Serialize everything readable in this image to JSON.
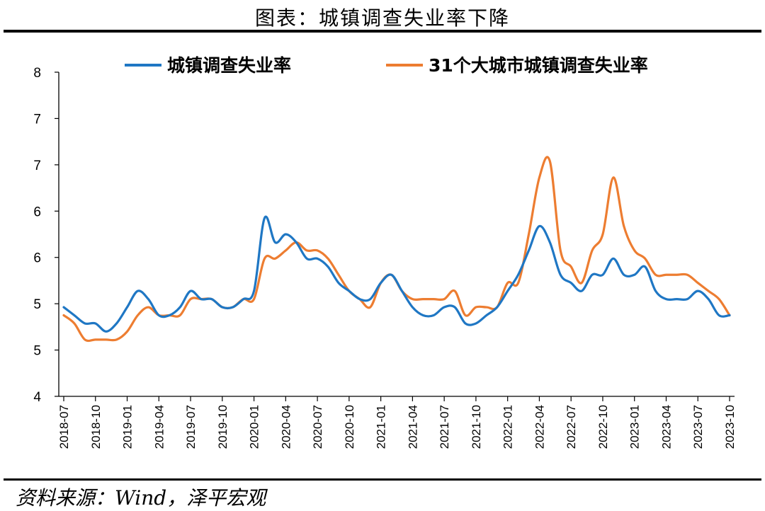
{
  "title": "图表：城镇调查失业率下降",
  "source": "资料来源：Wind，泽平宏观",
  "chart_data": {
    "type": "line",
    "title": "图表：城镇调查失业率下降",
    "y_tick_labels": [
      "8",
      "7",
      "7",
      "6",
      "6",
      "5",
      "5",
      "4"
    ],
    "ylim": [
      4,
      8
    ],
    "x_tick_labels": [
      "2018-07",
      "2018-10",
      "2019-01",
      "2019-04",
      "2019-07",
      "2019-10",
      "2020-01",
      "2020-04",
      "2020-07",
      "2020-10",
      "2021-01",
      "2021-04",
      "2021-07",
      "2021-10",
      "2022-01",
      "2022-04",
      "2022-07",
      "2022-10",
      "2023-01",
      "2023-04",
      "2023-07",
      "2023-10"
    ],
    "legend_position": "top",
    "grid": false,
    "x": [
      "2018-07",
      "2018-08",
      "2018-09",
      "2018-10",
      "2018-11",
      "2018-12",
      "2019-01",
      "2019-02",
      "2019-03",
      "2019-04",
      "2019-05",
      "2019-06",
      "2019-07",
      "2019-08",
      "2019-09",
      "2019-10",
      "2019-11",
      "2019-12",
      "2020-01",
      "2020-02",
      "2020-03",
      "2020-04",
      "2020-05",
      "2020-06",
      "2020-07",
      "2020-08",
      "2020-09",
      "2020-10",
      "2020-11",
      "2020-12",
      "2021-01",
      "2021-02",
      "2021-03",
      "2021-04",
      "2021-05",
      "2021-06",
      "2021-07",
      "2021-08",
      "2021-09",
      "2021-10",
      "2021-11",
      "2021-12",
      "2022-01",
      "2022-02",
      "2022-03",
      "2022-04",
      "2022-05",
      "2022-06",
      "2022-07",
      "2022-08",
      "2022-09",
      "2022-10",
      "2022-11",
      "2022-12",
      "2023-01",
      "2023-02",
      "2023-03",
      "2023-04",
      "2023-05",
      "2023-06",
      "2023-07",
      "2023-08",
      "2023-09",
      "2023-10"
    ],
    "series": [
      {
        "name": "城镇调查失业率",
        "color": "#1f77c4",
        "values": [
          5.1,
          5.0,
          4.9,
          4.9,
          4.8,
          4.9,
          5.1,
          5.3,
          5.2,
          5.0,
          5.0,
          5.1,
          5.3,
          5.2,
          5.2,
          5.1,
          5.1,
          5.2,
          5.3,
          6.2,
          5.9,
          6.0,
          5.9,
          5.7,
          5.7,
          5.6,
          5.4,
          5.3,
          5.2,
          5.2,
          5.4,
          5.5,
          5.3,
          5.1,
          5.0,
          5.0,
          5.1,
          5.1,
          4.9,
          4.9,
          5.0,
          5.1,
          5.3,
          5.5,
          5.8,
          6.1,
          5.9,
          5.5,
          5.4,
          5.3,
          5.5,
          5.5,
          5.7,
          5.5,
          5.5,
          5.6,
          5.3,
          5.2,
          5.2,
          5.2,
          5.3,
          5.2,
          5.0,
          5.0
        ]
      },
      {
        "name": "31个大城市城镇调查失业率",
        "color": "#ed7d31",
        "values": [
          5.0,
          4.9,
          4.7,
          4.7,
          4.7,
          4.7,
          4.8,
          5.0,
          5.1,
          5.0,
          5.0,
          5.0,
          5.2,
          5.2,
          5.2,
          5.1,
          5.1,
          5.2,
          5.2,
          5.7,
          5.7,
          5.8,
          5.9,
          5.8,
          5.8,
          5.7,
          5.5,
          5.3,
          5.2,
          5.1,
          5.4,
          5.5,
          5.3,
          5.2,
          5.2,
          5.2,
          5.2,
          5.3,
          5.0,
          5.1,
          5.1,
          5.1,
          5.4,
          5.4,
          6.0,
          6.7,
          6.9,
          5.8,
          5.6,
          5.4,
          5.8,
          6.0,
          6.7,
          6.1,
          5.8,
          5.7,
          5.5,
          5.5,
          5.5,
          5.5,
          5.4,
          5.3,
          5.2,
          5.0
        ]
      }
    ]
  }
}
